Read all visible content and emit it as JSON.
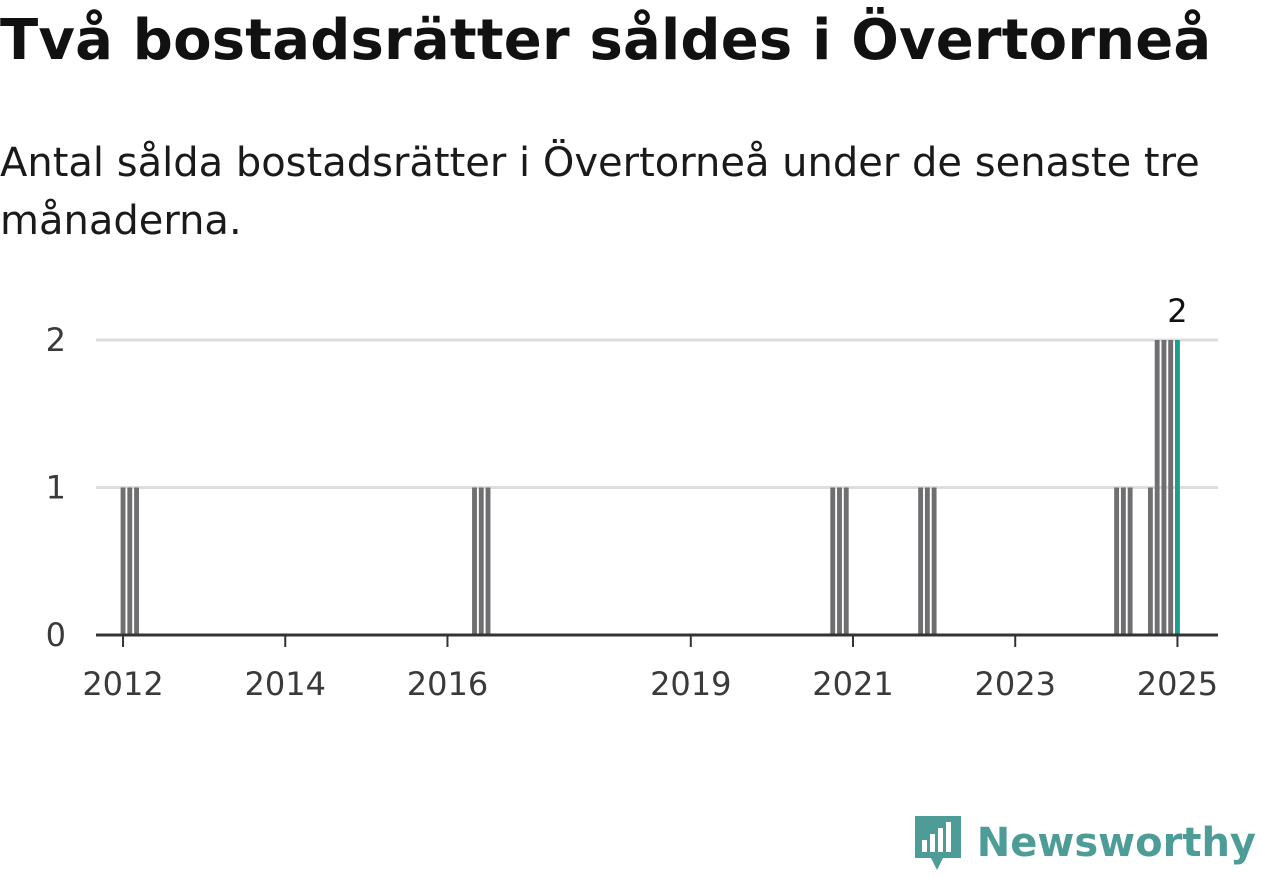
{
  "header": {
    "title": "Två bostadsrätter såldes i Övertorneå",
    "subtitle": "Antal sålda bostadsrätter i Övertorneå under de senaste tre månaderna."
  },
  "brand": {
    "name": "Newsworthy",
    "icon": "newsworthy-logo-icon",
    "color": "#4e9c98"
  },
  "colors": {
    "bar": "#6f6f72",
    "highlight": "#1a9e8f",
    "grid": "#dddddd",
    "axis": "#333333"
  },
  "chart_data": {
    "type": "bar",
    "title": "Två bostadsrätter såldes i Övertorneå",
    "subtitle": "Antal sålda bostadsrätter i Övertorneå under de senaste tre månaderna.",
    "xlabel": "",
    "ylabel": "",
    "ylim": [
      0,
      2
    ],
    "yticks": [
      0,
      1,
      2
    ],
    "xlim": [
      "2011-09",
      "2025-07"
    ],
    "xticks": [
      "2012",
      "2014",
      "2016",
      "2019",
      "2021",
      "2023",
      "2025"
    ],
    "grid": true,
    "legend": "none",
    "series": [
      {
        "x": [
          "2012-01",
          "2012-02",
          "2012-03",
          "2016-05",
          "2016-06",
          "2016-07",
          "2020-10",
          "2020-11",
          "2020-12",
          "2021-11",
          "2021-12",
          "2022-01",
          "2024-04",
          "2024-05",
          "2024-06",
          "2024-09",
          "2024-10",
          "2024-11",
          "2024-12",
          "2025-01"
        ],
        "values": [
          1,
          1,
          1,
          1,
          1,
          1,
          1,
          1,
          1,
          1,
          1,
          1,
          1,
          1,
          1,
          1,
          2,
          2,
          2,
          2
        ]
      }
    ],
    "highlight": {
      "x": "2025-01",
      "value": 2,
      "label": "2"
    }
  }
}
